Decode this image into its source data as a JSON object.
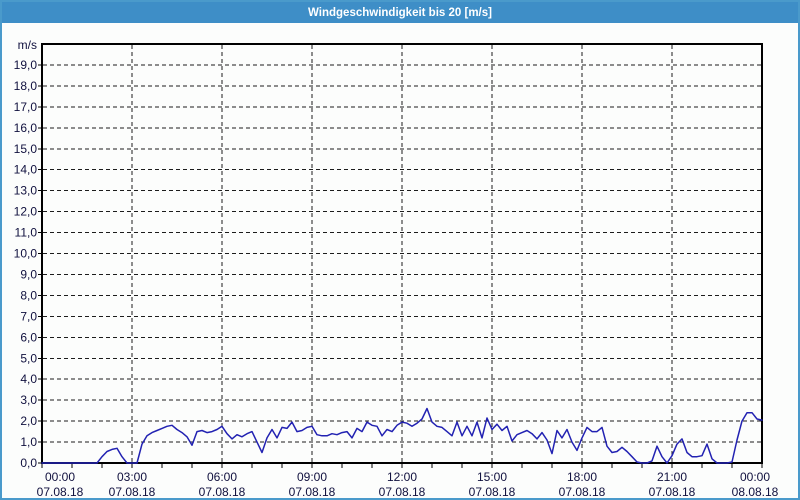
{
  "window": {
    "title": "Windgeschwindigkeit bis 20 [m/s]"
  },
  "colors": {
    "titlebar_bg": "#3e8ec7",
    "title_text": "#ffffff",
    "frame_border": "#4a9acb",
    "plot_border": "#000000",
    "grid": "#1c1c1c",
    "axis_text": "#10103e",
    "line": "#2222b2",
    "background": "#fcfdfc"
  },
  "chart_data": {
    "type": "line",
    "title": "Windgeschwindigkeit bis 20 [m/s]",
    "y_unit": "m/s",
    "ylim": [
      0,
      20
    ],
    "ytick_step": 1.0,
    "decimal_separator": ",",
    "grid": "dashed; horizontal every 1 m/s, vertical every 3 h",
    "legend_position": "none",
    "x_axis": {
      "start": "07.08.18 00:00",
      "end": "08.08.18 00:00",
      "major_tick_hours": 3,
      "minor_tick_hours": 1
    },
    "x_ticks": [
      {
        "time": "00:00",
        "date": "07.08.18"
      },
      {
        "time": "03:00",
        "date": "07.08.18"
      },
      {
        "time": "06:00",
        "date": "07.08.18"
      },
      {
        "time": "09:00",
        "date": "07.08.18"
      },
      {
        "time": "12:00",
        "date": "07.08.18"
      },
      {
        "time": "15:00",
        "date": "07.08.18"
      },
      {
        "time": "18:00",
        "date": "07.08.18"
      },
      {
        "time": "21:00",
        "date": "07.08.18"
      },
      {
        "time": "00:00",
        "date": "08.08.18"
      }
    ],
    "series": [
      {
        "name": "Windgeschwindigkeit",
        "unit": "m/s",
        "color": "#2222b2",
        "sample_interval_minutes": 10,
        "values": [
          0,
          0,
          0,
          0,
          0,
          0,
          0,
          0,
          0,
          0,
          0,
          0,
          0.3,
          0.55,
          0.65,
          0.7,
          0.3,
          0,
          0,
          0,
          0.9,
          1.3,
          1.45,
          1.55,
          1.65,
          1.75,
          1.8,
          1.6,
          1.45,
          1.25,
          0.85,
          1.5,
          1.55,
          1.45,
          1.5,
          1.6,
          1.75,
          1.4,
          1.15,
          1.35,
          1.25,
          1.4,
          1.5,
          1.0,
          0.5,
          1.2,
          1.6,
          1.2,
          1.7,
          1.65,
          1.95,
          1.5,
          1.55,
          1.7,
          1.75,
          1.35,
          1.3,
          1.3,
          1.4,
          1.35,
          1.45,
          1.5,
          1.2,
          1.65,
          1.5,
          1.95,
          1.8,
          1.75,
          1.3,
          1.6,
          1.5,
          1.8,
          1.95,
          1.9,
          1.75,
          1.9,
          2.1,
          2.6,
          1.95,
          1.75,
          1.7,
          1.5,
          1.3,
          1.95,
          1.3,
          1.75,
          1.3,
          1.95,
          1.2,
          2.15,
          1.6,
          1.85,
          1.55,
          1.75,
          1.05,
          1.35,
          1.45,
          1.55,
          1.4,
          1.15,
          1.45,
          1.1,
          0.45,
          1.55,
          1.2,
          1.6,
          1.0,
          0.6,
          1.2,
          1.7,
          1.5,
          1.5,
          1.7,
          0.8,
          0.5,
          0.55,
          0.75,
          0.55,
          0.3,
          0.05,
          0,
          0,
          0.1,
          0.8,
          0.3,
          0,
          0.35,
          0.9,
          1.15,
          0.5,
          0.3,
          0.3,
          0.35,
          0.9,
          0.2,
          0,
          0,
          0,
          0.05,
          1.1,
          2.0,
          2.4,
          2.4,
          2.1,
          2.05
        ]
      }
    ]
  }
}
